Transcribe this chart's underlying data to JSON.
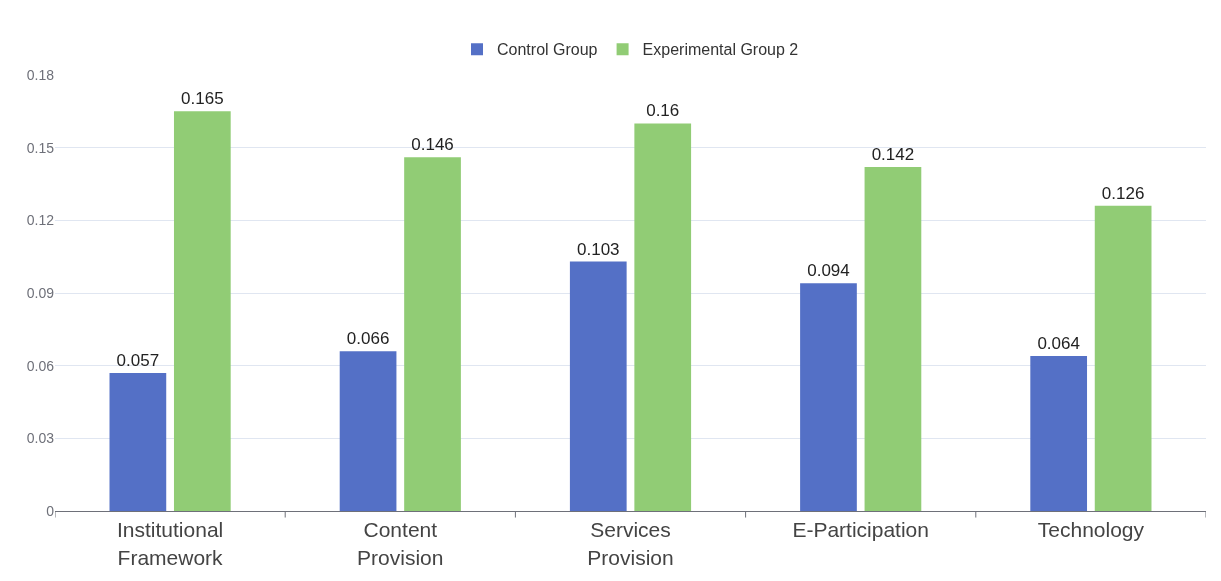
{
  "chart_data": {
    "type": "bar",
    "categories": [
      "Institutional Framework",
      "Content Provision",
      "Services Provision",
      "E-Participation",
      "Technology"
    ],
    "series": [
      {
        "name": "Control Group",
        "color": "#5470c6",
        "values": [
          0.057,
          0.066,
          0.103,
          0.094,
          0.064
        ]
      },
      {
        "name": "Experimental Group 2",
        "color": "#91cc75",
        "values": [
          0.165,
          0.146,
          0.16,
          0.142,
          0.126
        ]
      }
    ],
    "ylim": [
      0,
      0.18
    ],
    "yticks": [
      0,
      0.03,
      0.06,
      0.09,
      0.12,
      0.15,
      0.18
    ],
    "grid": "y",
    "legend": "top",
    "data_labels": true
  }
}
